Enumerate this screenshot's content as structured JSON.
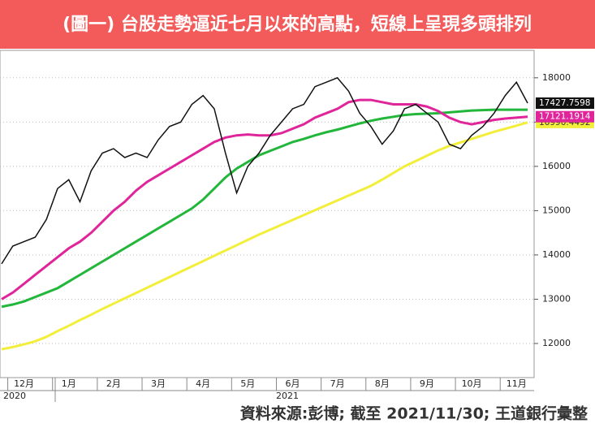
{
  "chart_data": {
    "type": "line",
    "title": "(圖一) 台股走勢逼近七月以來的高點，短線上呈現多頭排列",
    "source": "資料來源:彭博; 截至 2021/11/30; 王道銀行彙整",
    "categories": [
      null,
      null,
      "12月",
      null,
      null,
      null,
      "1月",
      null,
      null,
      null,
      "2月",
      null,
      null,
      null,
      "3月",
      null,
      null,
      null,
      "4月",
      null,
      null,
      null,
      "5月",
      null,
      null,
      null,
      "6月",
      null,
      null,
      null,
      "7月",
      null,
      null,
      null,
      "8月",
      null,
      null,
      null,
      "9月",
      null,
      null,
      null,
      "10月",
      null,
      null,
      null,
      "11月",
      null
    ],
    "year_labels": [
      "2020",
      "2021"
    ],
    "ylim": [
      11230,
      18620
    ],
    "yticks": [
      12000,
      13000,
      14000,
      15000,
      16000,
      17000,
      18000
    ],
    "grid": true,
    "series": [
      {
        "color": "#f2ee3a",
        "values": [
          11870,
          11920,
          11980,
          12050,
          12150,
          12280,
          12400,
          12530,
          12650,
          12780,
          12900,
          13020,
          13140,
          13260,
          13380,
          13500,
          13620,
          13740,
          13860,
          13980,
          14100,
          14220,
          14340,
          14460,
          14570,
          14680,
          14790,
          14900,
          15010,
          15120,
          15230,
          15340,
          15450,
          15560,
          15700,
          15850,
          16000,
          16120,
          16240,
          16360,
          16460,
          16540,
          16620,
          16700,
          16780,
          16850,
          16920,
          16990.4492
        ]
      },
      {
        "color": "#22b63a",
        "values": [
          12830,
          12880,
          12950,
          13050,
          13150,
          13250,
          13400,
          13550,
          13700,
          13850,
          14000,
          14150,
          14300,
          14450,
          14600,
          14750,
          14900,
          15050,
          15250,
          15500,
          15750,
          15950,
          16100,
          16250,
          16350,
          16450,
          16550,
          16620,
          16700,
          16770,
          16830,
          16900,
          16970,
          17030,
          17080,
          17120,
          17160,
          17180,
          17190,
          17200,
          17220,
          17240,
          17260,
          17270,
          17280,
          17280,
          17280,
          17280
        ]
      },
      {
        "color": "#e0249a",
        "values": [
          13000,
          13150,
          13350,
          13550,
          13750,
          13950,
          14150,
          14300,
          14500,
          14750,
          15000,
          15200,
          15450,
          15650,
          15800,
          15950,
          16100,
          16250,
          16400,
          16550,
          16650,
          16700,
          16720,
          16700,
          16700,
          16750,
          16850,
          16950,
          17100,
          17200,
          17300,
          17450,
          17500,
          17500,
          17450,
          17400,
          17400,
          17400,
          17350,
          17250,
          17100,
          17000,
          16950,
          17000,
          17050,
          17080,
          17100,
          17121.1914
        ]
      },
      {
        "color": "#111111",
        "values": [
          13800,
          14200,
          14300,
          14400,
          14800,
          15500,
          15700,
          15200,
          15900,
          16300,
          16400,
          16200,
          16300,
          16200,
          16600,
          16900,
          17000,
          17400,
          17600,
          17300,
          16300,
          15400,
          16000,
          16300,
          16700,
          17000,
          17300,
          17400,
          17800,
          17900,
          18000,
          17700,
          17200,
          16900,
          16500,
          16800,
          17300,
          17400,
          17200,
          17000,
          16500,
          16400,
          16700,
          16900,
          17200,
          17600,
          17900,
          17427.7598
        ]
      }
    ]
  }
}
